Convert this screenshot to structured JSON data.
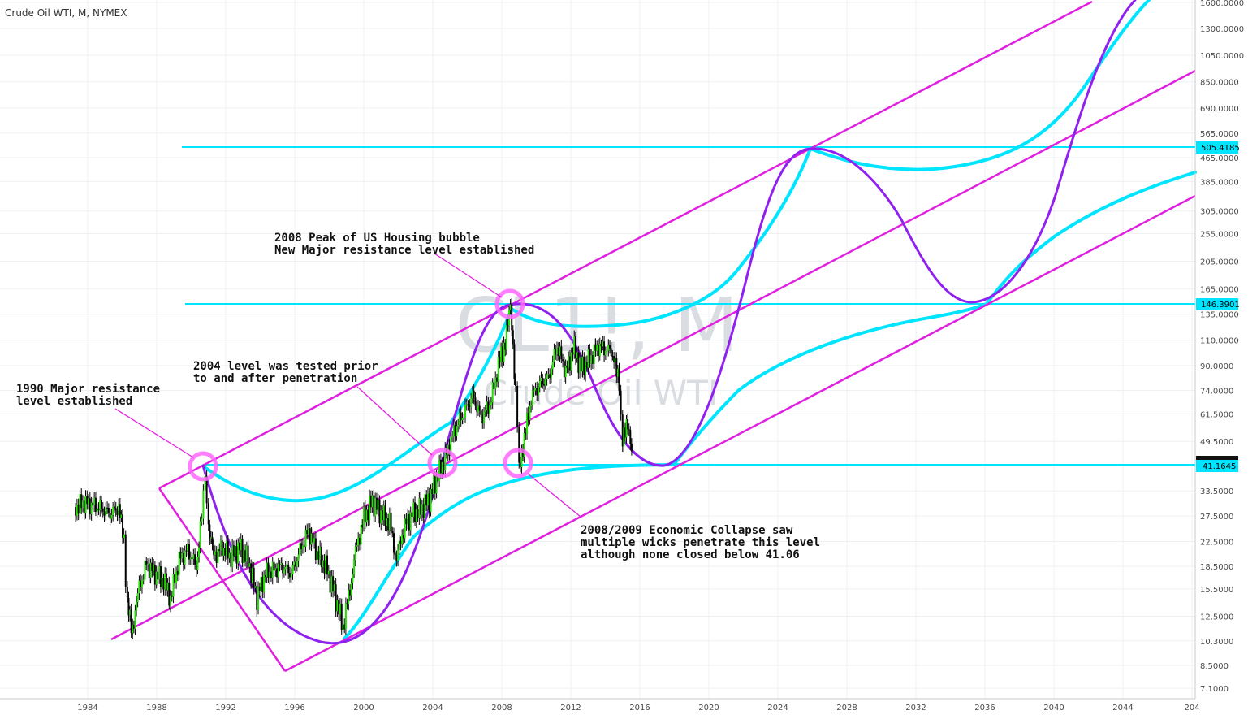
{
  "chart_data": {
    "type": "line",
    "title": "Crude Oil WTI, M, NYMEX",
    "watermark": {
      "symbol": "CL1!, M",
      "name": "Crude Oil WTI"
    },
    "x_ticks": [
      "1984",
      "1988",
      "1992",
      "1996",
      "2000",
      "2004",
      "2008",
      "2012",
      "2016",
      "2020",
      "2024",
      "2028",
      "2032",
      "2036",
      "2040",
      "2044",
      "204"
    ],
    "y_scale": "log",
    "y_ticks": [
      "1600.0000",
      "1300.0000",
      "1050.0000",
      "850.0000",
      "690.0000",
      "565.0000",
      "465.0000",
      "385.0000",
      "305.0000",
      "255.0000",
      "205.0000",
      "165.0000",
      "135.0000",
      "110.0000",
      "90.0000",
      "74.0000",
      "61.5000",
      "49.5000",
      "33.5000",
      "27.5000",
      "22.5000",
      "18.5000",
      "15.5000",
      "12.5000",
      "10.3000",
      "8.5000",
      "7.1000"
    ],
    "price_levels": [
      {
        "label": "505.4185",
        "value": 505.4185,
        "color": "#00e5ff"
      },
      {
        "label": "146.3901",
        "value": 146.3901,
        "color": "#00e5ff"
      },
      {
        "label": "41.1645",
        "value": 41.1645,
        "color": "#00e5ff"
      }
    ],
    "series": [
      {
        "type": "candlestick",
        "values": [
          {
            "x": 1983.3,
            "y": 29.5
          },
          {
            "x": 1983.8,
            "y": 30.5
          },
          {
            "x": 1984.3,
            "y": 30.0
          },
          {
            "x": 1984.8,
            "y": 29.2
          },
          {
            "x": 1985.3,
            "y": 28.0
          },
          {
            "x": 1985.8,
            "y": 29.5
          },
          {
            "x": 1986.1,
            "y": 22.0
          },
          {
            "x": 1986.3,
            "y": 13.5
          },
          {
            "x": 1986.6,
            "y": 11.5
          },
          {
            "x": 1986.9,
            "y": 15.0
          },
          {
            "x": 1987.4,
            "y": 18.8
          },
          {
            "x": 1987.9,
            "y": 17.5
          },
          {
            "x": 1988.4,
            "y": 16.5
          },
          {
            "x": 1988.8,
            "y": 14.5
          },
          {
            "x": 1989.3,
            "y": 19.5
          },
          {
            "x": 1989.8,
            "y": 21.0
          },
          {
            "x": 1990.3,
            "y": 18.5
          },
          {
            "x": 1990.6,
            "y": 28.0
          },
          {
            "x": 1990.8,
            "y": 38.0
          },
          {
            "x": 1991.0,
            "y": 25.0
          },
          {
            "x": 1991.3,
            "y": 20.0
          },
          {
            "x": 1991.8,
            "y": 21.5
          },
          {
            "x": 1992.3,
            "y": 20.0
          },
          {
            "x": 1992.8,
            "y": 21.5
          },
          {
            "x": 1993.3,
            "y": 19.5
          },
          {
            "x": 1993.8,
            "y": 14.5
          },
          {
            "x": 1994.3,
            "y": 17.5
          },
          {
            "x": 1994.8,
            "y": 18.0
          },
          {
            "x": 1995.3,
            "y": 18.5
          },
          {
            "x": 1995.8,
            "y": 17.5
          },
          {
            "x": 1996.3,
            "y": 21.0
          },
          {
            "x": 1996.8,
            "y": 24.5
          },
          {
            "x": 1997.3,
            "y": 20.5
          },
          {
            "x": 1997.8,
            "y": 18.5
          },
          {
            "x": 1998.3,
            "y": 15.0
          },
          {
            "x": 1998.8,
            "y": 11.5
          },
          {
            "x": 1999.2,
            "y": 15.5
          },
          {
            "x": 1999.6,
            "y": 22.0
          },
          {
            "x": 2000.0,
            "y": 27.0
          },
          {
            "x": 2000.5,
            "y": 31.0
          },
          {
            "x": 2001.0,
            "y": 28.0
          },
          {
            "x": 2001.5,
            "y": 26.0
          },
          {
            "x": 2001.9,
            "y": 19.5
          },
          {
            "x": 2002.3,
            "y": 25.0
          },
          {
            "x": 2002.8,
            "y": 28.0
          },
          {
            "x": 2003.3,
            "y": 29.0
          },
          {
            "x": 2003.8,
            "y": 31.5
          },
          {
            "x": 2004.3,
            "y": 38.0
          },
          {
            "x": 2004.8,
            "y": 45.0
          },
          {
            "x": 2005.3,
            "y": 55.0
          },
          {
            "x": 2005.8,
            "y": 62.0
          },
          {
            "x": 2006.3,
            "y": 71.0
          },
          {
            "x": 2006.8,
            "y": 60.0
          },
          {
            "x": 2007.3,
            "y": 66.0
          },
          {
            "x": 2007.8,
            "y": 90.0
          },
          {
            "x": 2008.2,
            "y": 110.0
          },
          {
            "x": 2008.5,
            "y": 140.0
          },
          {
            "x": 2008.8,
            "y": 75.0
          },
          {
            "x": 2009.0,
            "y": 42.0
          },
          {
            "x": 2009.3,
            "y": 50.0
          },
          {
            "x": 2009.7,
            "y": 70.0
          },
          {
            "x": 2010.2,
            "y": 78.0
          },
          {
            "x": 2010.7,
            "y": 82.0
          },
          {
            "x": 2011.2,
            "y": 105.0
          },
          {
            "x": 2011.7,
            "y": 86.0
          },
          {
            "x": 2012.2,
            "y": 104.0
          },
          {
            "x": 2012.6,
            "y": 88.0
          },
          {
            "x": 2013.1,
            "y": 95.0
          },
          {
            "x": 2013.6,
            "y": 105.0
          },
          {
            "x": 2014.1,
            "y": 102.0
          },
          {
            "x": 2014.5,
            "y": 98.0
          },
          {
            "x": 2014.8,
            "y": 75.0
          },
          {
            "x": 2015.0,
            "y": 48.0
          },
          {
            "x": 2015.3,
            "y": 58.0
          },
          {
            "x": 2015.6,
            "y": 45.0
          }
        ]
      }
    ],
    "annotations": [
      {
        "lines": [
          "1990 Major resistance",
          "level established"
        ]
      },
      {
        "lines": [
          "2004 level was tested prior",
          "to and after penetration"
        ]
      },
      {
        "lines": [
          "2008 Peak of US Housing bubble",
          "New Major resistance level established"
        ]
      },
      {
        "lines": [
          "2008/2009 Economic Collapse saw",
          "multiple wicks penetrate this level",
          "although none closed below 41.06"
        ]
      }
    ],
    "grid": true,
    "colors": {
      "up": "#22e000",
      "down": "#000000",
      "channel": "#e020e0",
      "cycle": "#9020f0",
      "arc": "#00e5ff"
    }
  }
}
